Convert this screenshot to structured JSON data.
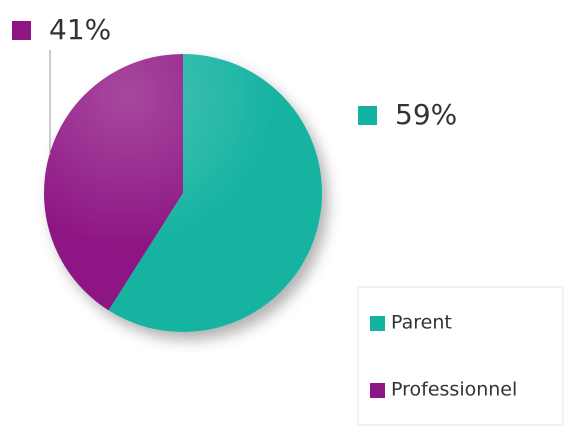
{
  "chart_data": {
    "type": "pie",
    "categories": [
      "Parent",
      "Professionnel"
    ],
    "values": [
      59,
      41
    ],
    "value_labels": [
      "59%",
      "41%"
    ],
    "colors": [
      "#13b3a1",
      "#8e1584"
    ],
    "legend": "bottom-right"
  }
}
